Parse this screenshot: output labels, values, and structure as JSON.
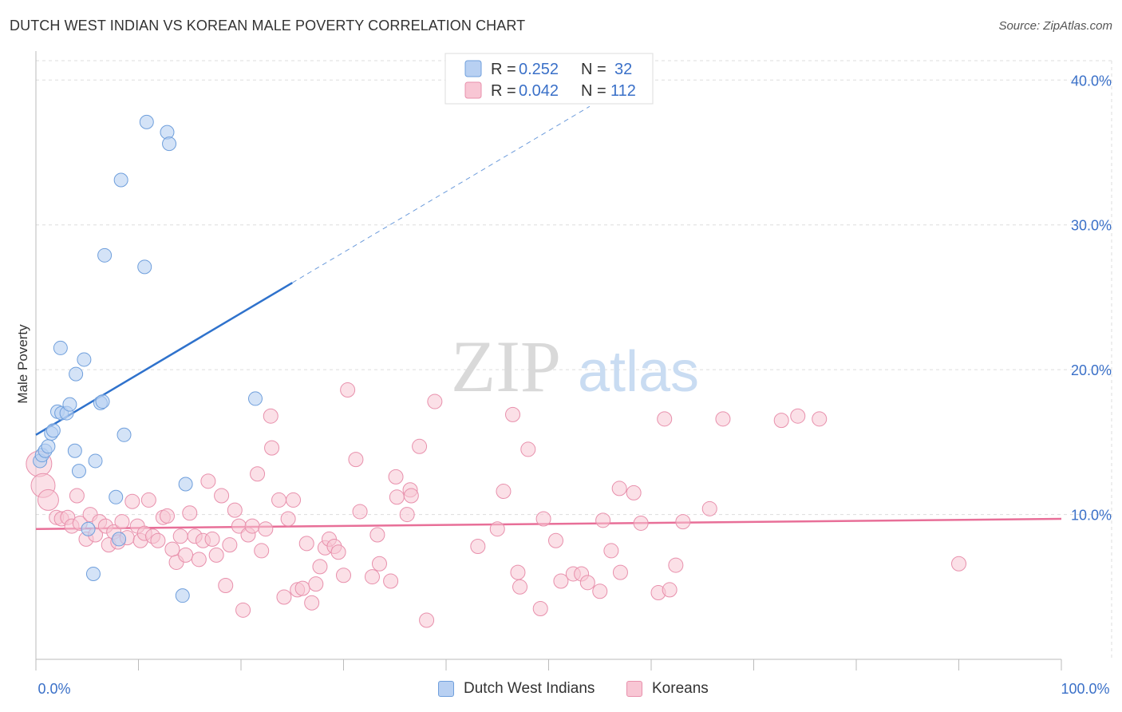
{
  "header": {
    "title": "DUTCH WEST INDIAN VS KOREAN MALE POVERTY CORRELATION CHART",
    "source": "Source: ZipAtlas.com"
  },
  "watermark": {
    "zip": "ZIP",
    "atlas": "atlas"
  },
  "colors": {
    "blue_fill": "#b8d0f2",
    "blue_stroke": "#6f9fdc",
    "blue_line": "#2f72cc",
    "pink_fill": "#f8c6d4",
    "pink_stroke": "#e890ac",
    "pink_line": "#e86f98",
    "tick_label": "#3a70c8",
    "grid": "#dddddd"
  },
  "legend": {
    "rows": [
      {
        "r_label": "R =",
        "r_value": "0.252",
        "n_label": "N =",
        "n_value": "32"
      },
      {
        "r_label": "R =",
        "r_value": "0.042",
        "n_label": "N =",
        "n_value": "112"
      }
    ]
  },
  "bottom_legend": [
    "Dutch West Indians",
    "Koreans"
  ],
  "chart_data": {
    "type": "scatter",
    "title": "DUTCH WEST INDIAN VS KOREAN MALE POVERTY CORRELATION CHART",
    "xlabel": "",
    "ylabel": "Male Poverty",
    "xlim": [
      0,
      100
    ],
    "ylim": [
      0,
      42
    ],
    "x_tick_labels": [
      "0.0%",
      "100.0%"
    ],
    "y_ticks": [
      10,
      20,
      30,
      40
    ],
    "y_tick_labels": [
      "10.0%",
      "20.0%",
      "30.0%",
      "40.0%"
    ],
    "grid": true,
    "legend_position": "top-center",
    "series": [
      {
        "name": "Dutch West Indians",
        "R": 0.252,
        "N": 32,
        "trend": {
          "x0": 0,
          "y0": 15.5,
          "x1": 25,
          "y1": 26.0,
          "extend_dashed_to_x": 54
        },
        "points": [
          [
            0.4,
            13.7
          ],
          [
            0.6,
            14.1
          ],
          [
            0.9,
            14.4
          ],
          [
            1.2,
            14.7
          ],
          [
            1.5,
            15.6
          ],
          [
            1.7,
            15.8
          ],
          [
            2.1,
            17.1
          ],
          [
            2.5,
            17.0
          ],
          [
            3.0,
            17.0
          ],
          [
            3.3,
            17.6
          ],
          [
            3.8,
            14.4
          ],
          [
            4.2,
            13.0
          ],
          [
            2.4,
            21.5
          ],
          [
            3.9,
            19.7
          ],
          [
            4.7,
            20.7
          ],
          [
            5.1,
            9.0
          ],
          [
            5.6,
            5.9
          ],
          [
            5.8,
            13.7
          ],
          [
            6.3,
            17.7
          ],
          [
            6.5,
            17.8
          ],
          [
            6.7,
            27.9
          ],
          [
            7.8,
            11.2
          ],
          [
            8.1,
            8.3
          ],
          [
            8.3,
            33.1
          ],
          [
            8.6,
            15.5
          ],
          [
            10.6,
            27.1
          ],
          [
            10.8,
            37.1
          ],
          [
            12.8,
            36.4
          ],
          [
            13.0,
            35.6
          ],
          [
            14.3,
            4.4
          ],
          [
            14.6,
            12.1
          ],
          [
            21.4,
            18.0
          ]
        ]
      },
      {
        "name": "Koreans",
        "R": 0.042,
        "N": 112,
        "trend": {
          "x0": 0,
          "y0": 9.0,
          "x1": 100,
          "y1": 9.7
        },
        "points": [
          [
            0.3,
            13.5
          ],
          [
            0.7,
            12.0
          ],
          [
            1.2,
            11.0
          ],
          [
            2.0,
            9.8
          ],
          [
            2.5,
            9.7
          ],
          [
            3.1,
            9.8
          ],
          [
            3.5,
            9.2
          ],
          [
            4.0,
            11.3
          ],
          [
            4.3,
            9.4
          ],
          [
            4.9,
            8.3
          ],
          [
            5.3,
            10.0
          ],
          [
            5.8,
            8.6
          ],
          [
            6.2,
            9.5
          ],
          [
            6.8,
            9.2
          ],
          [
            7.1,
            7.9
          ],
          [
            7.6,
            8.8
          ],
          [
            8.0,
            8.1
          ],
          [
            8.4,
            9.5
          ],
          [
            8.9,
            8.4
          ],
          [
            9.4,
            10.9
          ],
          [
            9.9,
            9.2
          ],
          [
            10.2,
            8.2
          ],
          [
            10.6,
            8.7
          ],
          [
            11.0,
            11.0
          ],
          [
            11.4,
            8.5
          ],
          [
            11.9,
            8.2
          ],
          [
            12.4,
            9.8
          ],
          [
            12.8,
            9.9
          ],
          [
            13.3,
            7.6
          ],
          [
            13.7,
            6.7
          ],
          [
            14.1,
            8.5
          ],
          [
            14.6,
            7.2
          ],
          [
            15.0,
            10.1
          ],
          [
            15.5,
            8.5
          ],
          [
            15.9,
            6.9
          ],
          [
            16.3,
            8.2
          ],
          [
            16.8,
            12.3
          ],
          [
            17.2,
            8.3
          ],
          [
            17.6,
            7.2
          ],
          [
            18.1,
            11.3
          ],
          [
            18.5,
            5.1
          ],
          [
            18.9,
            7.9
          ],
          [
            19.4,
            10.3
          ],
          [
            19.8,
            9.2
          ],
          [
            20.2,
            3.4
          ],
          [
            20.7,
            8.6
          ],
          [
            21.1,
            9.2
          ],
          [
            21.6,
            12.8
          ],
          [
            22.0,
            7.5
          ],
          [
            22.4,
            9.0
          ],
          [
            22.9,
            16.8
          ],
          [
            23.0,
            14.6
          ],
          [
            23.7,
            11.0
          ],
          [
            24.2,
            4.3
          ],
          [
            24.6,
            9.7
          ],
          [
            25.1,
            11.0
          ],
          [
            25.5,
            4.8
          ],
          [
            26.0,
            4.9
          ],
          [
            26.4,
            8.0
          ],
          [
            26.9,
            3.9
          ],
          [
            27.3,
            5.2
          ],
          [
            27.7,
            6.4
          ],
          [
            28.2,
            7.7
          ],
          [
            28.6,
            8.3
          ],
          [
            29.1,
            7.8
          ],
          [
            29.5,
            7.4
          ],
          [
            30.0,
            5.8
          ],
          [
            30.4,
            18.6
          ],
          [
            31.2,
            13.8
          ],
          [
            31.6,
            10.2
          ],
          [
            32.8,
            5.7
          ],
          [
            33.3,
            8.6
          ],
          [
            33.5,
            6.6
          ],
          [
            34.6,
            5.4
          ],
          [
            35.1,
            12.6
          ],
          [
            35.2,
            11.2
          ],
          [
            36.5,
            11.7
          ],
          [
            36.6,
            11.3
          ],
          [
            36.2,
            10.0
          ],
          [
            37.4,
            14.7
          ],
          [
            38.1,
            2.7
          ],
          [
            38.9,
            17.8
          ],
          [
            43.1,
            7.8
          ],
          [
            45.0,
            9.0
          ],
          [
            45.6,
            11.6
          ],
          [
            46.5,
            16.9
          ],
          [
            47.0,
            6.0
          ],
          [
            47.2,
            5.0
          ],
          [
            48.0,
            14.5
          ],
          [
            49.2,
            3.5
          ],
          [
            49.5,
            9.7
          ],
          [
            50.7,
            8.2
          ],
          [
            51.2,
            5.4
          ],
          [
            52.4,
            5.9
          ],
          [
            53.2,
            5.9
          ],
          [
            53.8,
            5.3
          ],
          [
            55.0,
            4.7
          ],
          [
            55.3,
            9.6
          ],
          [
            56.1,
            7.5
          ],
          [
            56.9,
            11.8
          ],
          [
            57.0,
            6.0
          ],
          [
            58.3,
            11.5
          ],
          [
            59.0,
            9.4
          ],
          [
            60.7,
            4.6
          ],
          [
            61.8,
            4.8
          ],
          [
            62.4,
            6.5
          ],
          [
            63.1,
            9.5
          ],
          [
            65.7,
            10.4
          ],
          [
            67.0,
            16.6
          ],
          [
            72.7,
            16.5
          ],
          [
            74.3,
            16.8
          ],
          [
            76.4,
            16.6
          ],
          [
            90.0,
            6.6
          ],
          [
            61.3,
            16.6
          ]
        ]
      }
    ]
  }
}
